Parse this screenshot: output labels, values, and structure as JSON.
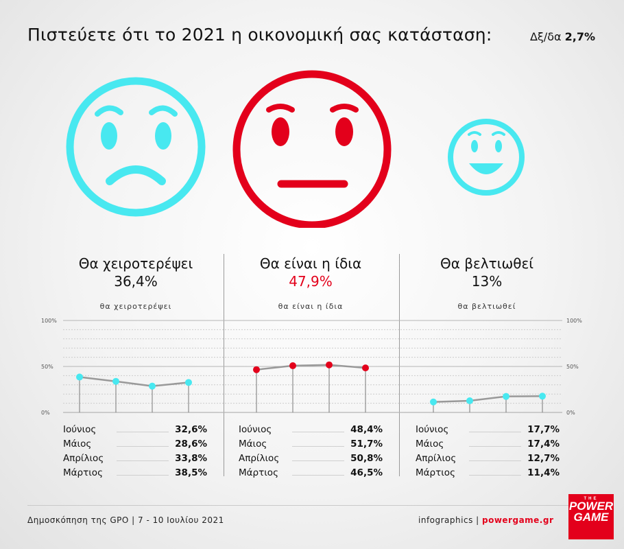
{
  "title": "Πιστεύετε ότι το 2021 η οικονομική σας κατάσταση:",
  "dkdk": {
    "label": "Δξ/δα",
    "value": "2,7%"
  },
  "colors": {
    "cyan": "#48e8f0",
    "red": "#e3001b",
    "line": "#999999"
  },
  "chart_data": {
    "type": "line",
    "ylim": [
      0,
      100
    ],
    "yticks": [
      "100%",
      "50%",
      "0%"
    ],
    "x": [
      "Μάρτιος",
      "Απρίλιος",
      "Μάιος",
      "Ιούνιος"
    ],
    "panels": [
      {
        "id": "worse",
        "face": "sad",
        "color": "#48e8f0",
        "heading": "Θα χειροτερέψει",
        "percent": "36,4%",
        "sublabel": "θα χειροτερέψει",
        "values": [
          38.5,
          33.8,
          28.6,
          32.6
        ],
        "table": [
          {
            "month": "Ιούνιος",
            "value": "32,6%"
          },
          {
            "month": "Μάιος",
            "value": "28,6%"
          },
          {
            "month": "Απρίλιος",
            "value": "33,8%"
          },
          {
            "month": "Μάρτιος",
            "value": "38,5%"
          }
        ]
      },
      {
        "id": "same",
        "face": "neutral",
        "color": "#e3001b",
        "heading": "Θα είναι η ίδια",
        "percent": "47,9%",
        "sublabel": "θα είναι η ίδια",
        "values": [
          46.5,
          50.8,
          51.7,
          48.4
        ],
        "table": [
          {
            "month": "Ιούνιος",
            "value": "48,4%"
          },
          {
            "month": "Μάιος",
            "value": "51,7%"
          },
          {
            "month": "Απρίλιος",
            "value": "50,8%"
          },
          {
            "month": "Μάρτιος",
            "value": "46,5%"
          }
        ]
      },
      {
        "id": "better",
        "face": "happy",
        "color": "#48e8f0",
        "heading": "Θα βελτιωθεί",
        "percent": "13%",
        "sublabel": "θα βελτιωθεί",
        "values": [
          11.4,
          12.7,
          17.4,
          17.7
        ],
        "table": [
          {
            "month": "Ιούνιος",
            "value": "17,7%"
          },
          {
            "month": "Μάιος",
            "value": "17,4%"
          },
          {
            "month": "Απρίλιος",
            "value": "12,7%"
          },
          {
            "month": "Μάρτιος",
            "value": "11,4%"
          }
        ]
      }
    ]
  },
  "footer": {
    "source": "Δημοσκόπηση της GPO | 7 - 10 Ιουλίου 2021",
    "credit_prefix": "infographics | ",
    "credit_site": "powergame.gr"
  },
  "logo": {
    "line1": "THE",
    "line2": "POWER",
    "line3": "GAME"
  }
}
